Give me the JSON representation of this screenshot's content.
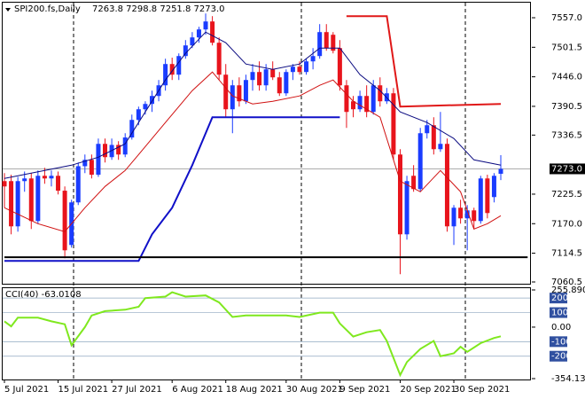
{
  "chart_data": {
    "type": "candlestick",
    "title": "SPI200.fs,Daily",
    "ohlc_text": "7263.8 7298.8 7251.8 7273.0",
    "last_price": {
      "value": 7273.0,
      "label": "7273.0"
    },
    "bull_color": "#1a3cff",
    "bear_color": "#e8141c",
    "categories": [
      "5 Jul 2021",
      null,
      null,
      null,
      null,
      null,
      null,
      null,
      "15 Jul 2021",
      null,
      null,
      null,
      null,
      null,
      null,
      null,
      "27 Jul 2021",
      null,
      null,
      null,
      null,
      null,
      null,
      null,
      null,
      "6 Aug 2021",
      null,
      null,
      null,
      null,
      null,
      null,
      null,
      "18 Aug 2021",
      null,
      null,
      null,
      null,
      null,
      null,
      null,
      null,
      "30 Aug 2021",
      null,
      null,
      null,
      null,
      null,
      null,
      null,
      "9 Sep 2021",
      null,
      null,
      null,
      null,
      null,
      null,
      null,
      null,
      "20 Sep 2021",
      null,
      null,
      null,
      null,
      null,
      null,
      null,
      "30 Sep 2021",
      null,
      null,
      null,
      null,
      null,
      null,
      null
    ],
    "ohlc": [
      [
        7250,
        7265,
        7200,
        7240
      ],
      [
        7250,
        7262,
        7150,
        7165
      ],
      [
        7165,
        7258,
        7155,
        7250
      ],
      [
        7250,
        7268,
        7230,
        7255
      ],
      [
        7255,
        7265,
        7160,
        7175
      ],
      [
        7175,
        7270,
        7170,
        7260
      ],
      [
        7260,
        7275,
        7245,
        7255
      ],
      [
        7255,
        7270,
        7240,
        7260
      ],
      [
        7260,
        7268,
        7225,
        7232
      ],
      [
        7232,
        7240,
        7105,
        7120
      ],
      [
        7130,
        7215,
        7125,
        7210
      ],
      [
        7210,
        7285,
        7205,
        7278
      ],
      [
        7278,
        7300,
        7265,
        7290
      ],
      [
        7290,
        7300,
        7255,
        7262
      ],
      [
        7262,
        7330,
        7258,
        7320
      ],
      [
        7320,
        7330,
        7285,
        7295
      ],
      [
        7295,
        7330,
        7290,
        7318
      ],
      [
        7318,
        7325,
        7290,
        7300
      ],
      [
        7300,
        7340,
        7295,
        7332
      ],
      [
        7332,
        7375,
        7328,
        7365
      ],
      [
        7365,
        7390,
        7355,
        7385
      ],
      [
        7385,
        7400,
        7375,
        7395
      ],
      [
        7395,
        7420,
        7380,
        7410
      ],
      [
        7410,
        7440,
        7400,
        7430
      ],
      [
        7430,
        7480,
        7420,
        7470
      ],
      [
        7470,
        7482,
        7440,
        7450
      ],
      [
        7450,
        7490,
        7440,
        7485
      ],
      [
        7485,
        7515,
        7480,
        7505
      ],
      [
        7505,
        7530,
        7500,
        7520
      ],
      [
        7520,
        7540,
        7510,
        7535
      ],
      [
        7535,
        7565,
        7525,
        7550
      ],
      [
        7550,
        7560,
        7505,
        7510
      ],
      [
        7510,
        7520,
        7440,
        7450
      ],
      [
        7450,
        7470,
        7370,
        7385
      ],
      [
        7385,
        7440,
        7340,
        7430
      ],
      [
        7430,
        7445,
        7390,
        7400
      ],
      [
        7400,
        7450,
        7395,
        7440
      ],
      [
        7440,
        7470,
        7420,
        7455
      ],
      [
        7455,
        7475,
        7420,
        7430
      ],
      [
        7430,
        7470,
        7420,
        7460
      ],
      [
        7460,
        7475,
        7440,
        7445
      ],
      [
        7445,
        7455,
        7410,
        7415
      ],
      [
        7415,
        7460,
        7410,
        7455
      ],
      [
        7455,
        7470,
        7440,
        7465
      ],
      [
        7465,
        7475,
        7450,
        7455
      ],
      [
        7455,
        7480,
        7450,
        7475
      ],
      [
        7475,
        7500,
        7460,
        7485
      ],
      [
        7485,
        7545,
        7480,
        7530
      ],
      [
        7530,
        7545,
        7495,
        7500
      ],
      [
        7525,
        7530,
        7490,
        7495
      ],
      [
        7500,
        7515,
        7420,
        7430
      ],
      [
        7430,
        7440,
        7350,
        7380
      ],
      [
        7400,
        7410,
        7370,
        7385
      ],
      [
        7385,
        7420,
        7380,
        7410
      ],
      [
        7410,
        7430,
        7370,
        7380
      ],
      [
        7380,
        7440,
        7375,
        7430
      ],
      [
        7430,
        7445,
        7390,
        7400
      ],
      [
        7400,
        7425,
        7395,
        7415
      ],
      [
        7415,
        7425,
        7290,
        7300
      ],
      [
        7300,
        7310,
        7075,
        7150
      ],
      [
        7150,
        7260,
        7140,
        7250
      ],
      [
        7260,
        7280,
        7230,
        7235
      ],
      [
        7235,
        7350,
        7230,
        7340
      ],
      [
        7340,
        7365,
        7330,
        7355
      ],
      [
        7355,
        7370,
        7300,
        7310
      ],
      [
        7310,
        7380,
        7305,
        7320
      ],
      [
        7320,
        7330,
        7155,
        7165
      ],
      [
        7165,
        7205,
        7130,
        7200
      ],
      [
        7200,
        7215,
        7170,
        7180
      ],
      [
        7180,
        7205,
        7120,
        7195
      ],
      [
        7195,
        7200,
        7160,
        7175
      ],
      [
        7175,
        7260,
        7170,
        7255
      ],
      [
        7255,
        7262,
        7180,
        7190
      ],
      [
        7220,
        7265,
        7210,
        7260
      ],
      [
        7263.8,
        7298.8,
        7251.8,
        7273.0
      ]
    ],
    "ylim": [
      7060.5,
      7557.0
    ],
    "yticks": [
      {
        "value": 7557.0,
        "label": "7557.0"
      },
      7501.5,
      {
        "value": 7446.0,
        "label": "7446.0"
      },
      7390.5,
      7336.5,
      7225.5,
      {
        "value": 7170.0,
        "label": "7170.0"
      },
      7114.5,
      7060.5
    ],
    "series": [
      {
        "color": "#0a0a80",
        "width": 1,
        "x": [
          0,
          10,
          14,
          18,
          21,
          24,
          27,
          30,
          33,
          36,
          40,
          44,
          47,
          50,
          53,
          56,
          59,
          63,
          67,
          70,
          74
        ],
        "values": [
          7255,
          7280,
          7295,
          7320,
          7380,
          7440,
          7490,
          7530,
          7510,
          7470,
          7460,
          7470,
          7500,
          7500,
          7450,
          7420,
          7380,
          7360,
          7330,
          7290,
          7280
        ]
      },
      {
        "color": "#d01010",
        "width": 1,
        "x": [
          0,
          5,
          9,
          12,
          15,
          18,
          20,
          24,
          28,
          31,
          34,
          37,
          40,
          44,
          47,
          49,
          52,
          56,
          59,
          62,
          65,
          68,
          70,
          72,
          74
        ],
        "values": [
          7200,
          7170,
          7155,
          7200,
          7240,
          7270,
          7300,
          7360,
          7420,
          7455,
          7410,
          7395,
          7400,
          7410,
          7430,
          7440,
          7400,
          7370,
          7250,
          7230,
          7270,
          7230,
          7160,
          7170,
          7185
        ]
      },
      {
        "color": "#1010c8",
        "width": 2,
        "x": [
          0,
          20,
          22,
          25,
          28,
          31,
          50
        ],
        "values": [
          7100,
          7100,
          7150,
          7200,
          7280,
          7370,
          7370
        ]
      },
      {
        "color": "#e01818",
        "width": 2,
        "x": [
          51,
          57,
          59,
          74
        ],
        "values": [
          7560,
          7560,
          7390,
          7395
        ]
      },
      {
        "color": "#000000",
        "width": 2,
        "x": [
          0,
          78
        ],
        "values": [
          7107,
          7107
        ]
      }
    ],
    "cci": {
      "label": "CCI(40) -63.0108",
      "color": "#7fe81e",
      "ylim": [
        -354.135,
        255.8902
      ],
      "yticks": [
        255.8902,
        {
          "value": 0,
          "label": "0.00"
        },
        -354.135
      ],
      "levels": [
        200,
        100,
        -100,
        -200
      ],
      "x": [
        0,
        1,
        2,
        5,
        7,
        9,
        10,
        12,
        13,
        15,
        18,
        20,
        21,
        24,
        25,
        27,
        30,
        32,
        34,
        36,
        39,
        42,
        44,
        47,
        49,
        50,
        52,
        54,
        56,
        57,
        59,
        60,
        62,
        64,
        65,
        67,
        68,
        69,
        71,
        73,
        74
      ],
      "values": [
        40,
        5,
        65,
        65,
        40,
        20,
        -125,
        0,
        80,
        110,
        120,
        140,
        200,
        210,
        240,
        210,
        218,
        170,
        70,
        80,
        80,
        80,
        70,
        100,
        100,
        25,
        -65,
        -35,
        -20,
        -95,
        -330,
        -240,
        -150,
        -95,
        -200,
        -180,
        -135,
        -170,
        -110,
        -75,
        -63.0108
      ]
    }
  }
}
